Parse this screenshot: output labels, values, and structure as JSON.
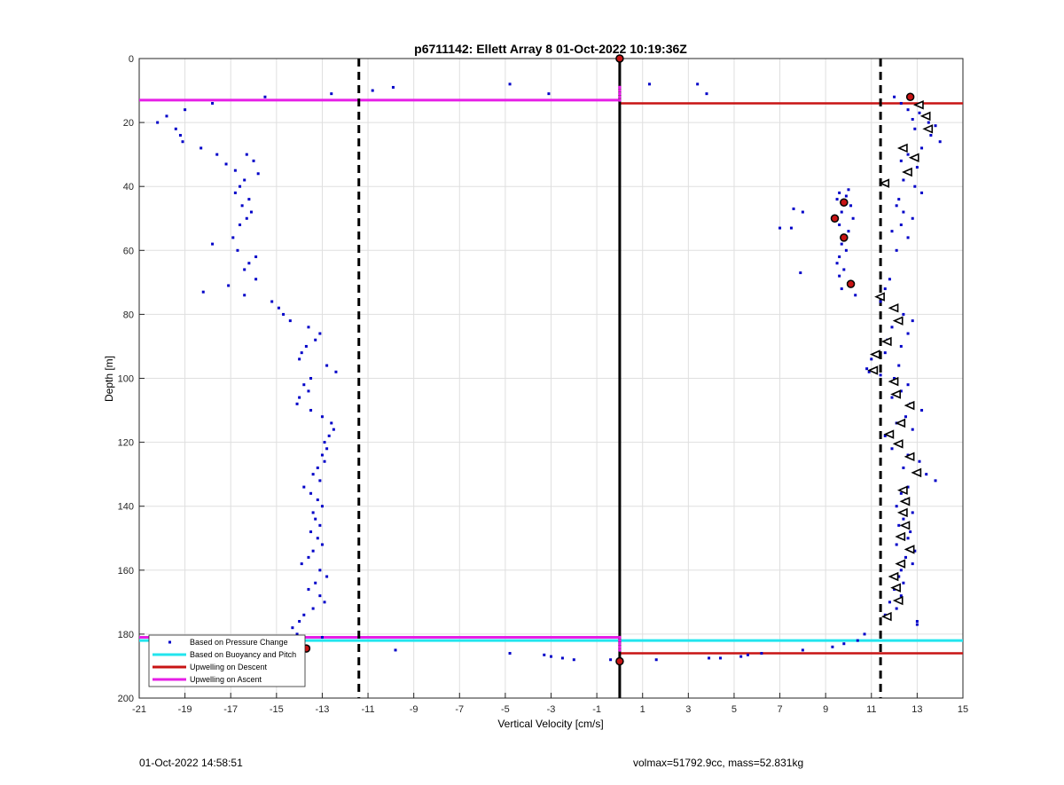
{
  "footer": {
    "left_text": "01-Oct-2022 14:58:51",
    "right_text": "volmax=51792.9cc, mass=52.831kg"
  },
  "chart_data": {
    "type": "scatter",
    "title": "p6711142: Ellett Array 8 01-Oct-2022 10:19:36Z",
    "xlabel": "Vertical Velocity [cm/s]",
    "ylabel": "Depth [m]",
    "xlim": [
      -21,
      15
    ],
    "ylim": [
      0,
      200
    ],
    "y_reversed": true,
    "grid": true,
    "xticks": [
      -21,
      -19,
      -17,
      -15,
      -13,
      -11,
      -9,
      -7,
      -5,
      -3,
      -1,
      1,
      3,
      5,
      7,
      9,
      11,
      13,
      15
    ],
    "yticks": [
      0,
      20,
      40,
      60,
      80,
      100,
      120,
      140,
      160,
      180,
      200
    ],
    "legend": {
      "position": "bottom-left",
      "entries": [
        {
          "label": "Based on Pressure Change",
          "color": "#0000c8",
          "style": "dot"
        },
        {
          "label": "Based on Buoyancy and Pitch",
          "color": "#22e5ee",
          "style": "line"
        },
        {
          "label": "Upwelling on Descent",
          "color": "#c81414",
          "style": "line"
        },
        {
          "label": "Upwelling on Ascent",
          "color": "#e61ee6",
          "style": "line"
        }
      ]
    },
    "reference_lines": {
      "zero_line_x": 0,
      "dashed_x": [
        -11.4,
        11.4
      ],
      "ascent_y": [
        13,
        181
      ],
      "descent_y": [
        14,
        186
      ],
      "buoyancy_y": 182
    },
    "colors": {
      "pressure": "#0000c8",
      "buoyancy": "#22e5ee",
      "descent": "#c81414",
      "ascent": "#e61ee6",
      "marker_fill": "#c81414"
    },
    "series": [
      {
        "name": "Based on Pressure Change",
        "points": [
          [
            -20.2,
            20
          ],
          [
            -19.8,
            18
          ],
          [
            -19.4,
            22
          ],
          [
            -19.2,
            24
          ],
          [
            -19,
            16
          ],
          [
            -19.1,
            26
          ],
          [
            -18.3,
            28
          ],
          [
            -17.6,
            30
          ],
          [
            -17.8,
            14
          ],
          [
            -17.2,
            33
          ],
          [
            -16.8,
            35
          ],
          [
            -16.3,
            30
          ],
          [
            -16,
            32
          ],
          [
            -15.8,
            36
          ],
          [
            -16.4,
            38
          ],
          [
            -16.6,
            40
          ],
          [
            -16.8,
            42
          ],
          [
            -16.2,
            44
          ],
          [
            -16.5,
            46
          ],
          [
            -16.1,
            48
          ],
          [
            -16.3,
            50
          ],
          [
            -16.6,
            52
          ],
          [
            -16.9,
            56
          ],
          [
            -17.8,
            58
          ],
          [
            -16.7,
            60
          ],
          [
            -15.9,
            62
          ],
          [
            -16.2,
            64
          ],
          [
            -16.4,
            66
          ],
          [
            -15.9,
            69
          ],
          [
            -17.1,
            71
          ],
          [
            -18.2,
            73
          ],
          [
            -16.4,
            74
          ],
          [
            -15.2,
            76
          ],
          [
            -14.9,
            78
          ],
          [
            -14.7,
            80
          ],
          [
            -14.4,
            82
          ],
          [
            -13.6,
            84
          ],
          [
            -13.1,
            86
          ],
          [
            -13.3,
            88
          ],
          [
            -13.7,
            90
          ],
          [
            -13.9,
            92
          ],
          [
            -14.0,
            94
          ],
          [
            -12.8,
            96
          ],
          [
            -12.4,
            98
          ],
          [
            -13.5,
            100
          ],
          [
            -13.8,
            102
          ],
          [
            -13.6,
            104
          ],
          [
            -14.0,
            106
          ],
          [
            -14.1,
            108
          ],
          [
            -13.5,
            110
          ],
          [
            -13.0,
            112
          ],
          [
            -12.6,
            114
          ],
          [
            -12.5,
            116
          ],
          [
            -12.7,
            118
          ],
          [
            -12.9,
            120
          ],
          [
            -12.8,
            122
          ],
          [
            -13.0,
            124
          ],
          [
            -12.9,
            126
          ],
          [
            -13.2,
            128
          ],
          [
            -13.4,
            130
          ],
          [
            -13.1,
            132
          ],
          [
            -13.8,
            134
          ],
          [
            -13.5,
            136
          ],
          [
            -13.2,
            138
          ],
          [
            -13.0,
            140
          ],
          [
            -13.4,
            142
          ],
          [
            -13.3,
            144
          ],
          [
            -13.1,
            146
          ],
          [
            -13.5,
            148
          ],
          [
            -13.2,
            150
          ],
          [
            -13.0,
            152
          ],
          [
            -13.4,
            154
          ],
          [
            -13.6,
            156
          ],
          [
            -13.9,
            158
          ],
          [
            -13.1,
            160
          ],
          [
            -12.8,
            162
          ],
          [
            -13.3,
            164
          ],
          [
            -13.6,
            166
          ],
          [
            -13.1,
            168
          ],
          [
            -12.9,
            170
          ],
          [
            -13.4,
            172
          ],
          [
            -13.8,
            174
          ],
          [
            -14.0,
            176
          ],
          [
            -14.3,
            178
          ],
          [
            -14.1,
            180
          ],
          [
            -13.9,
            182
          ],
          [
            -13.0,
            181
          ],
          [
            -13.6,
            184
          ],
          [
            -15.5,
            12
          ],
          [
            -12.6,
            11
          ],
          [
            -10.8,
            10
          ],
          [
            -9.9,
            9
          ],
          [
            -4.8,
            8
          ],
          [
            -3.1,
            11
          ],
          [
            1.3,
            8
          ],
          [
            3.4,
            8
          ],
          [
            3.8,
            11
          ],
          [
            -9.8,
            185
          ],
          [
            -4.8,
            186
          ],
          [
            -3.3,
            186.5
          ],
          [
            -3.0,
            187
          ],
          [
            -2.5,
            187.5
          ],
          [
            -2.0,
            188
          ],
          [
            -0.4,
            188
          ],
          [
            1.6,
            188
          ],
          [
            3.9,
            187.5
          ],
          [
            4.4,
            187.5
          ],
          [
            5.3,
            187
          ],
          [
            5.6,
            186.5
          ],
          [
            6.2,
            186
          ],
          [
            8.0,
            185
          ],
          [
            9.3,
            184
          ],
          [
            9.8,
            183
          ],
          [
            10.4,
            182
          ],
          [
            10.7,
            180
          ],
          [
            12.0,
            12
          ],
          [
            12.3,
            14
          ],
          [
            12.6,
            16
          ],
          [
            13.1,
            17
          ],
          [
            12.8,
            19
          ],
          [
            13.5,
            20
          ],
          [
            13.8,
            21
          ],
          [
            12.9,
            22
          ],
          [
            13.6,
            24
          ],
          [
            14.0,
            26
          ],
          [
            13.2,
            28
          ],
          [
            12.6,
            30
          ],
          [
            12.3,
            32
          ],
          [
            13.0,
            34
          ],
          [
            12.7,
            36
          ],
          [
            12.4,
            38
          ],
          [
            12.9,
            40
          ],
          [
            13.2,
            42
          ],
          [
            12.2,
            44
          ],
          [
            12.1,
            46
          ],
          [
            12.4,
            48
          ],
          [
            12.8,
            50
          ],
          [
            12.3,
            52
          ],
          [
            11.9,
            54
          ],
          [
            12.6,
            56
          ],
          [
            12.1,
            60
          ],
          [
            9.6,
            42
          ],
          [
            10.0,
            41
          ],
          [
            9.9,
            43
          ],
          [
            9.5,
            44
          ],
          [
            10.1,
            46
          ],
          [
            9.7,
            48
          ],
          [
            10.2,
            50
          ],
          [
            9.6,
            52
          ],
          [
            10.0,
            54
          ],
          [
            9.7,
            58
          ],
          [
            9.9,
            60
          ],
          [
            9.6,
            62
          ],
          [
            9.5,
            64
          ],
          [
            9.8,
            66
          ],
          [
            9.6,
            68
          ],
          [
            9.7,
            72
          ],
          [
            10.3,
            74
          ],
          [
            7.9,
            67
          ],
          [
            7.6,
            47
          ],
          [
            8.0,
            48
          ],
          [
            7.0,
            53
          ],
          [
            7.5,
            53
          ],
          [
            11.8,
            69
          ],
          [
            11.6,
            72
          ],
          [
            11.4,
            76
          ],
          [
            12.1,
            78
          ],
          [
            12.4,
            80
          ],
          [
            12.8,
            82
          ],
          [
            11.9,
            84
          ],
          [
            12.6,
            86
          ],
          [
            11.7,
            88
          ],
          [
            12.3,
            90
          ],
          [
            11.6,
            92
          ],
          [
            11.0,
            94
          ],
          [
            12.2,
            96
          ],
          [
            10.8,
            97
          ],
          [
            10.9,
            98
          ],
          [
            11.4,
            99
          ],
          [
            12.0,
            100
          ],
          [
            12.6,
            102
          ],
          [
            12.3,
            104
          ],
          [
            11.9,
            106
          ],
          [
            12.7,
            108
          ],
          [
            13.2,
            110
          ],
          [
            12.5,
            112
          ],
          [
            12.1,
            114
          ],
          [
            12.8,
            116
          ],
          [
            11.6,
            118
          ],
          [
            12.3,
            120
          ],
          [
            11.9,
            122
          ],
          [
            12.6,
            124
          ],
          [
            13.1,
            126
          ],
          [
            12.4,
            128
          ],
          [
            13.4,
            130
          ],
          [
            13.8,
            132
          ],
          [
            12.6,
            134
          ],
          [
            12.3,
            136
          ],
          [
            12.5,
            138
          ],
          [
            12.1,
            140
          ],
          [
            12.8,
            142
          ],
          [
            12.4,
            144
          ],
          [
            12.2,
            146
          ],
          [
            12.7,
            148
          ],
          [
            12.6,
            150
          ],
          [
            12.1,
            152
          ],
          [
            12.9,
            154
          ],
          [
            12.5,
            156
          ],
          [
            12.8,
            158
          ],
          [
            12.3,
            160
          ],
          [
            12.2,
            162
          ],
          [
            12.4,
            164
          ],
          [
            12.0,
            166
          ],
          [
            12.3,
            168
          ],
          [
            11.8,
            170
          ],
          [
            12.1,
            172
          ],
          [
            11.6,
            174
          ],
          [
            13.0,
            176
          ],
          [
            13.0,
            177
          ]
        ]
      },
      {
        "name": "Upwelling on Descent",
        "markers": [
          [
            0,
            0
          ],
          [
            12.7,
            12
          ],
          [
            9.8,
            45
          ],
          [
            9.4,
            50
          ],
          [
            9.8,
            56
          ],
          [
            10.1,
            70.5
          ],
          [
            0,
            188.5
          ],
          [
            -13.7,
            184.5
          ]
        ]
      }
    ],
    "open_triangles": [
      [
        13.1,
        14.5
      ],
      [
        13.4,
        18
      ],
      [
        13.5,
        22
      ],
      [
        12.4,
        28
      ],
      [
        12.9,
        31
      ],
      [
        12.6,
        35.5
      ],
      [
        11.6,
        39
      ],
      [
        11.4,
        74.5
      ],
      [
        12.0,
        78
      ],
      [
        12.2,
        82
      ],
      [
        11.7,
        88.5
      ],
      [
        11.2,
        92.5
      ],
      [
        11.1,
        97.5
      ],
      [
        12.0,
        101
      ],
      [
        12.1,
        105
      ],
      [
        12.7,
        108.5
      ],
      [
        12.3,
        114
      ],
      [
        11.8,
        117.5
      ],
      [
        12.2,
        120.5
      ],
      [
        12.7,
        124.5
      ],
      [
        13.0,
        129.5
      ],
      [
        12.4,
        135
      ],
      [
        12.5,
        138.5
      ],
      [
        12.4,
        142
      ],
      [
        12.5,
        146
      ],
      [
        12.3,
        149.5
      ],
      [
        12.7,
        153.5
      ],
      [
        12.3,
        158
      ],
      [
        12.0,
        162
      ],
      [
        12.1,
        165.5
      ],
      [
        12.2,
        169.5
      ],
      [
        11.7,
        174.5
      ]
    ]
  }
}
